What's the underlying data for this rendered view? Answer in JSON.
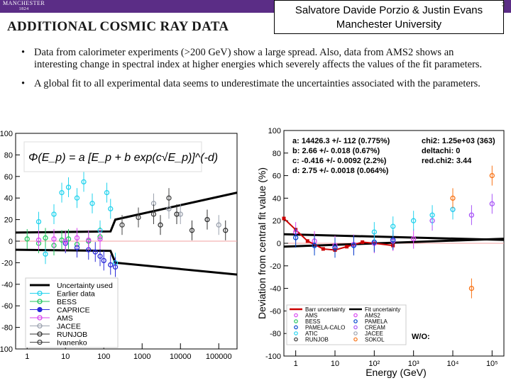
{
  "header": {
    "logo_text": "MANCHESTER",
    "logo_year": "1824",
    "title": "ADDITIONAL COSMIC RAY DATA",
    "author_line1": "Salvatore Davide Porzio & Justin Evans",
    "author_line2": "Manchester University",
    "slide_number": "3"
  },
  "bullets": [
    "Data from calorimeter experiments (>200 GeV) show a large spread. Also, data from AMS2 shows an interesting change in spectral index at higher energies which severely affects the values of the fit parameters.",
    "A global fit to all experimental data seems to underestimate the uncertainties associated with the parameters."
  ],
  "colors": {
    "purple_bar": "#5b2d86",
    "uncertainty": "#000000",
    "earlier": "#22d3ee",
    "bess": "#22c55e",
    "caprice": "#2a2ad8",
    "ams": "#d946ef",
    "jacee": "#9ca3af",
    "runjob": "#333333",
    "ivanenko": "#444444",
    "barr": "#cc0000",
    "pamela": "#0044cc",
    "cream": "#a855f7",
    "sokol": "#f97316"
  },
  "chart_data": [
    {
      "type": "scatter",
      "title": "",
      "formula": "Φ(E_p) = a [E_p + b exp(c√E_p)]^(-d)",
      "xlabel": "",
      "ylabel": "",
      "x_scale": "log",
      "xlim": [
        0.5,
        300000
      ],
      "ylim": [
        -100,
        100
      ],
      "x_ticks": [
        "1",
        "10",
        "100",
        "1000",
        "10000",
        "100000"
      ],
      "x_tick_values": [
        1,
        10,
        100,
        1000,
        10000,
        100000
      ],
      "y_ticks": [
        "100",
        "80",
        "60",
        "40",
        "20",
        "0",
        "-20",
        "-40",
        "-60",
        "-80",
        "-100"
      ],
      "y_tick_values": [
        100,
        80,
        60,
        40,
        20,
        0,
        -20,
        -40,
        -60,
        -80,
        -100
      ],
      "legend": {
        "placement": "bottom-left",
        "entries": [
          "Uncertainty used",
          "Earlier data",
          "BESS",
          "CAPRICE",
          "AMS",
          "JACEE",
          "RUNJOB",
          "Ivanenko"
        ]
      },
      "series": [
        {
          "name": "Uncertainty used (upper)",
          "x": [
            0.5,
            150,
            200,
            300000
          ],
          "y": [
            8,
            9,
            20,
            45
          ]
        },
        {
          "name": "Uncertainty used (lower)",
          "x": [
            0.5,
            150,
            200,
            300000
          ],
          "y": [
            -8,
            -9,
            -20,
            -31
          ]
        },
        {
          "name": "Earlier data",
          "x": [
            2,
            3,
            5,
            8,
            12,
            20,
            30,
            50,
            80,
            120,
            150,
            200
          ],
          "y": [
            18,
            -12,
            25,
            45,
            50,
            40,
            55,
            35,
            10,
            45,
            30,
            -20
          ]
        },
        {
          "name": "BESS",
          "x": [
            1,
            2,
            3,
            5,
            8,
            12,
            20,
            40,
            80
          ],
          "y": [
            2,
            -2,
            3,
            -4,
            1,
            2,
            -3,
            0,
            4
          ]
        },
        {
          "name": "CAPRICE",
          "x": [
            10,
            20,
            40,
            60,
            80,
            100,
            150,
            200
          ],
          "y": [
            -2,
            -6,
            -8,
            -10,
            -14,
            -18,
            -22,
            -24
          ]
        },
        {
          "name": "AMS",
          "x": [
            2,
            5,
            10,
            20,
            40,
            80
          ],
          "y": [
            1,
            2,
            0,
            3,
            1,
            2
          ]
        },
        {
          "name": "JACEE",
          "x": [
            2000,
            5000,
            10000,
            50000,
            100000
          ],
          "y": [
            35,
            30,
            25,
            20,
            15
          ]
        },
        {
          "name": "RUNJOB",
          "x": [
            3000,
            8000,
            20000,
            50000,
            150000
          ],
          "y": [
            15,
            25,
            10,
            20,
            10
          ]
        },
        {
          "name": "Ivanenko",
          "x": [
            300,
            800,
            2000,
            5000
          ],
          "y": [
            15,
            22,
            25,
            40
          ]
        }
      ]
    },
    {
      "type": "scatter",
      "title": "",
      "xlabel": "Energy (GeV)",
      "ylabel": "Deviation from central fit value (%)",
      "x_scale": "log",
      "xlim": [
        0.5,
        200000
      ],
      "ylim": [
        -100,
        100
      ],
      "x_ticks": [
        "1",
        "10",
        "10²",
        "10³",
        "10⁴",
        "10⁵"
      ],
      "x_tick_values": [
        1,
        10,
        100,
        1000,
        10000,
        100000
      ],
      "y_ticks": [
        "100",
        "80",
        "60",
        "40",
        "20",
        "0",
        "-20",
        "-40",
        "-60",
        "-80",
        "-100"
      ],
      "y_tick_values": [
        100,
        80,
        60,
        40,
        20,
        0,
        -20,
        -40,
        -60,
        -80,
        -100
      ],
      "fit_params": [
        "a: 14426.3 +/- 112   (0.775%)",
        "b: 2.66 +/- 0.018   (0.67%)",
        "c: -0.416 +/- 0.0092   (2.2%)",
        "d: 2.75 +/- 0.0018   (0.064%)"
      ],
      "fit_stats": [
        "chi2: 1.25e+03 (363)",
        "deltachi: 0",
        "red.chi2: 3.44"
      ],
      "legend": {
        "placement": "bottom",
        "entries": [
          "Barr uncertainty",
          "Fit uncertainty",
          "AMS",
          "AMS2",
          "BESS",
          "PAMELA",
          "PAMELA-CALO",
          "CREAM",
          "ATIC",
          "JACEE",
          "RUNJOB",
          "SOKOL"
        ],
        "note": "W/O:"
      },
      "series": [
        {
          "name": "Fit uncertainty (upper)",
          "x": [
            0.5,
            200000
          ],
          "y": [
            8,
            3
          ]
        },
        {
          "name": "Fit uncertainty (lower)",
          "x": [
            0.5,
            200000
          ],
          "y": [
            -3,
            4
          ]
        },
        {
          "name": "Barr uncertainty",
          "x": [
            0.5,
            1,
            2,
            5,
            10,
            20,
            50,
            100,
            300
          ],
          "y": [
            22,
            12,
            2,
            -5,
            -6,
            -3,
            1,
            0,
            -2
          ]
        },
        {
          "name": "AMS2",
          "x": [
            1,
            3,
            10,
            30,
            100,
            300,
            1000
          ],
          "y": [
            10,
            2,
            -2,
            -1,
            0,
            2,
            4
          ]
        },
        {
          "name": "PAMELA",
          "x": [
            1,
            3,
            10,
            30,
            100,
            300
          ],
          "y": [
            5,
            -2,
            -4,
            -2,
            1,
            3
          ]
        },
        {
          "name": "CREAM",
          "x": [
            3000,
            10000,
            30000,
            100000
          ],
          "y": [
            20,
            30,
            25,
            35
          ]
        },
        {
          "name": "ATIC",
          "x": [
            100,
            300,
            1000,
            3000,
            10000
          ],
          "y": [
            10,
            15,
            20,
            25,
            30
          ]
        },
        {
          "name": "SOKOL",
          "x": [
            10000,
            30000,
            100000
          ],
          "y": [
            40,
            -40,
            60
          ]
        }
      ]
    }
  ]
}
